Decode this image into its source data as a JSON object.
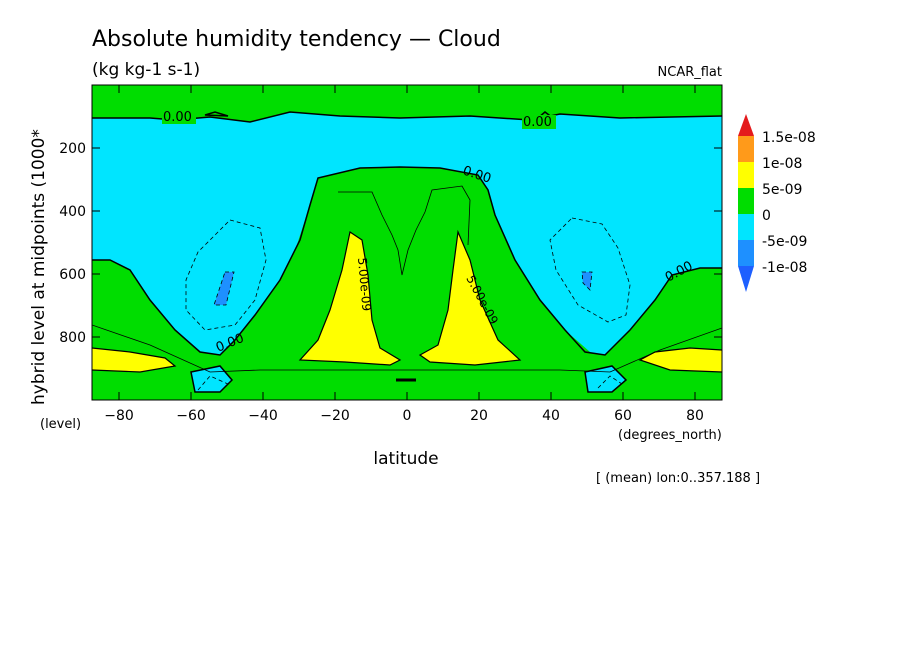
{
  "chart_data": {
    "type": "heatmap",
    "title": "Absolute humidity tendency — Cloud",
    "units": "(kg kg-1 s-1)",
    "source_label": "NCAR_flat",
    "xlabel": "latitude",
    "xunits": "(degrees_north)",
    "ylabel": "hybrid level at midpoints (1000*",
    "yunits": "(level)",
    "footnote": "[ (mean) lon:0..357.188 ]",
    "xlim": [
      -87.5,
      87.5
    ],
    "ylim": [
      1000,
      0
    ],
    "x_ticks": [
      -80,
      -60,
      -40,
      -20,
      0,
      20,
      40,
      60,
      80
    ],
    "x_tick_labels": [
      "−80",
      "−60",
      "−40",
      "−20",
      "0",
      "20",
      "40",
      "60",
      "80"
    ],
    "y_ticks": [
      200,
      400,
      600,
      800
    ],
    "y_tick_labels": [
      "200",
      "400",
      "600",
      "800"
    ],
    "colorbar": {
      "labels": [
        "1.5e-08",
        "1e-08",
        "5e-09",
        "0",
        "-5e-09",
        "-1e-08"
      ],
      "colors": [
        "#e41a1c",
        "#ff9a1a",
        "#ffff00",
        "#00dd00",
        "#00e5ff",
        "#1e90ff",
        "#1e60ff"
      ]
    },
    "contour_labels": [
      {
        "text": "0.00",
        "x": -65,
        "y": 100
      },
      {
        "text": "0.00",
        "x": 37,
        "y": 110
      },
      {
        "text": "0.00",
        "x": 21,
        "y": 290
      },
      {
        "text": "0.00",
        "x": 73,
        "y": 590
      },
      {
        "text": "0.00",
        "x": -48,
        "y": 820
      },
      {
        "text": "5.00e-09",
        "x": -11,
        "y": 650
      },
      {
        "text": "5.00e-09",
        "x": 21,
        "y": 700
      }
    ],
    "regions": [
      {
        "level": "0 to 5e-09",
        "color": "#00dd00",
        "desc": "background"
      },
      {
        "level": "-5e-09 to 0",
        "color": "#00e5ff",
        "desc": "upper-mid troposphere both hemispheres"
      },
      {
        "level": "5e-09 to 1e-08",
        "color": "#ffff00",
        "desc": "subtropical lower troposphere and polar boundary layer"
      },
      {
        "level": "-1e-08 to -5e-09",
        "color": "#1e90ff",
        "desc": "small midlatitude cores"
      }
    ]
  }
}
